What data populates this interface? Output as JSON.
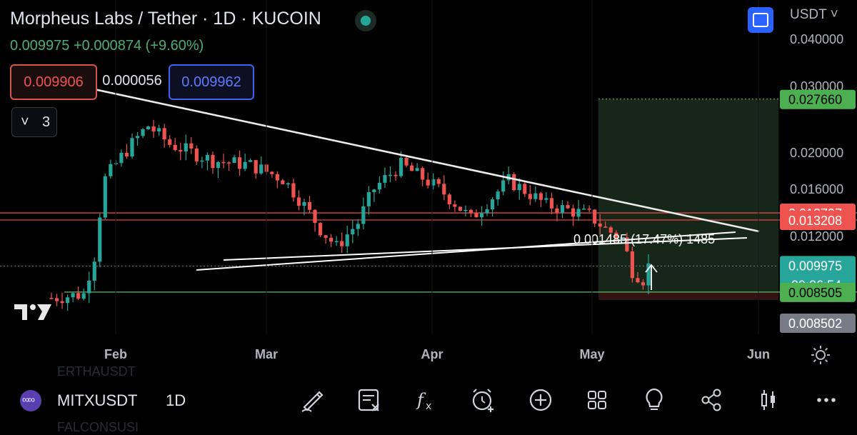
{
  "header": {
    "title": "Morpheus Labs / Tether · 1D · KUCOIN",
    "change_text": "0.009975  +0.000874 (+9.60%)",
    "currency": "USDT ˅",
    "bid": "0.009906",
    "spread": "0.000056",
    "ask": "0.009962",
    "indicator_chevron": "˅",
    "indicator_count": "3"
  },
  "colors": {
    "up": "#26a69a",
    "down": "#ef5350",
    "line_color": "#ffffff",
    "target_zone": "#1e3320",
    "stop_zone": "#3a1616",
    "accent": "#2962ff"
  },
  "chart_data": {
    "type": "candlestick",
    "timeframe": "1D",
    "yscale": "log",
    "y_tick_labels": [
      "0.040000",
      "0.030000",
      "0.020000",
      "0.016000",
      "0.012000"
    ],
    "y_ticks": [
      0.04,
      0.03,
      0.02,
      0.016,
      0.012
    ],
    "x_tick_labels": [
      "Feb",
      "Mar",
      "Apr",
      "May",
      "Jun"
    ],
    "price_tags": [
      {
        "label": "0.027660",
        "value": 0.02766,
        "color": "#4caf50",
        "text_color": "#000000"
      },
      {
        "label": "0.013797",
        "value": 0.013797,
        "color": "#ef5350",
        "text_color": "#ffffff"
      },
      {
        "label": "0.013208",
        "value": 0.013208,
        "color": "#ef5350",
        "text_color": "#ffffff"
      },
      {
        "label": "0.009975",
        "value": 0.009975,
        "color": "#26a69a",
        "text_color": "#ffffff",
        "sub": "09:26:54"
      },
      {
        "label": "0.008505",
        "value": 0.008505,
        "color": "#4caf50",
        "text_color": "#000000"
      },
      {
        "label": "0.008502",
        "value": 0.008502,
        "color": "#787b86",
        "text_color": "#ffffff"
      }
    ],
    "horizontal_lines": [
      0.013797,
      0.013208
    ],
    "annotation": "0.001485 (17.47%) 1485",
    "last_price": 0.009975,
    "countdown": "09:26:54"
  },
  "bottom": {
    "symbol": "MITXUSDT",
    "interval": "1D",
    "ghost_above": "ERTHAUSDT",
    "ghost_below": "FALCONSUSI",
    "tools": [
      "draw-icon",
      "indicators-icon",
      "formula-icon",
      "alert-add-icon",
      "add-icon",
      "layouts-icon",
      "idea-icon",
      "share-icon",
      "candle-type-icon",
      "more-icon"
    ]
  }
}
